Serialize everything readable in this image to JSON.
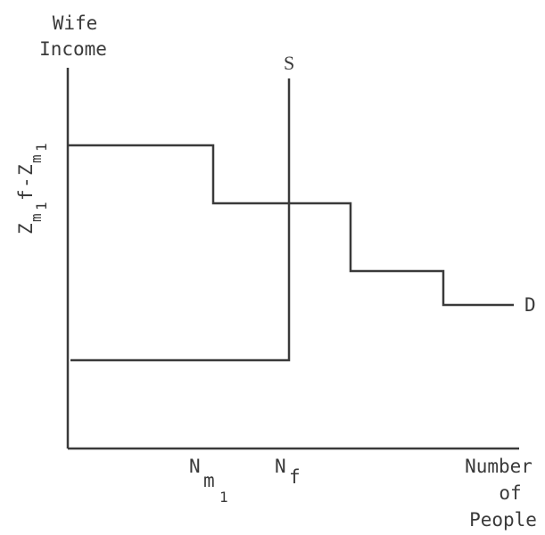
{
  "y_axis_label": {
    "line1": "Wife",
    "line2": "Income"
  },
  "x_axis_label": {
    "line1": "Number",
    "line2": "of",
    "line3": "People"
  },
  "supply_label": "S",
  "demand_label": "D",
  "y_axis_tick": {
    "z1": "Z",
    "m1": "m",
    "one1": "1",
    "f": "f",
    "dash": "-",
    "z2": "Z",
    "m2": "m",
    "one2": "1"
  },
  "x_tick_nm": {
    "main": "N",
    "sub1": "m",
    "sub2": "1"
  },
  "x_tick_nf": {
    "main": "N",
    "sub": "f"
  },
  "colors": {
    "ink": "#3a3a3a",
    "background": "#ffffff"
  }
}
